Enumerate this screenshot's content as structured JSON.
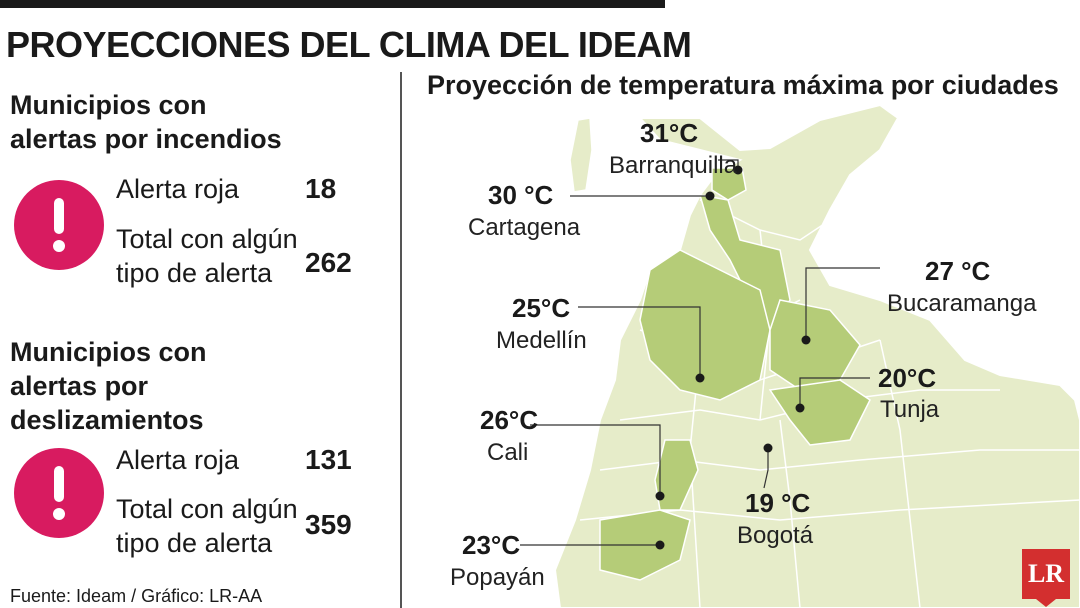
{
  "header": {
    "title": "PROYECCIONES DEL CLIMA DEL IDEAM"
  },
  "fires": {
    "title": "Municipios con alertas por incendios",
    "red_label": "Alerta roja",
    "red_value": "18",
    "total_label": "Total con algún tipo de alerta",
    "total_value": "262"
  },
  "landslides": {
    "title": "Municipios con alertas por deslizamientos",
    "red_label": "Alerta roja",
    "red_value": "131",
    "total_label": "Total con algún tipo de alerta",
    "total_value": "359"
  },
  "source": "Fuente: Ideam / Gráfico: LR-AA",
  "map": {
    "title": "Proyección de temperatura máxima por ciudades",
    "cities": [
      {
        "name": "Barranquilla",
        "temp": "31°C"
      },
      {
        "name": "Cartagena",
        "temp": "30 °C"
      },
      {
        "name": "Bucaramanga",
        "temp": "27 °C"
      },
      {
        "name": "Medellín",
        "temp": "25°C"
      },
      {
        "name": "Tunja",
        "temp": "20°C"
      },
      {
        "name": "Cali",
        "temp": "26°C"
      },
      {
        "name": "Bogotá",
        "temp": "19 °C"
      },
      {
        "name": "Popayán",
        "temp": "23°C"
      }
    ]
  },
  "logo": {
    "text": "LR"
  },
  "colors": {
    "alert": "#d81b60",
    "map_light": "#e6ecc9",
    "map_highlight": "#b5cc78",
    "logo": "#d32f2f"
  }
}
